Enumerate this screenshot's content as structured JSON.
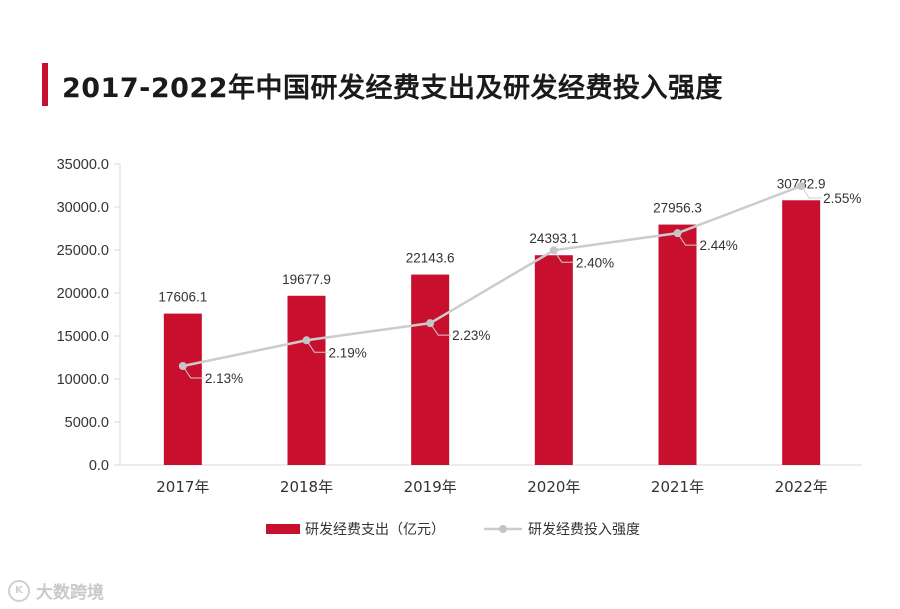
{
  "title": "2017-2022年中国研发经费支出及研发经费投入强度",
  "watermark": "大数跨境",
  "colors": {
    "bar": "#c8102e",
    "line": "#cccccc",
    "accent": "#c8102e",
    "axis": "#d9d9d9"
  },
  "chart_data": {
    "type": "bar",
    "categories": [
      "2017年",
      "2018年",
      "2019年",
      "2020年",
      "2021年",
      "2022年"
    ],
    "series": [
      {
        "name": "研发经费支出（亿元）",
        "type": "bar",
        "values": [
          17606.1,
          19677.9,
          22143.6,
          24393.1,
          27956.3,
          30782.9
        ],
        "labels": [
          "17606.1",
          "19677.9",
          "22143.6",
          "24393.1",
          "27956.3",
          "30782.9"
        ]
      },
      {
        "name": "研发经费投入强度",
        "type": "line",
        "values": [
          2.13,
          2.19,
          2.23,
          2.4,
          2.44,
          2.55
        ],
        "labels": [
          "2.13%",
          "2.19%",
          "2.23%",
          "2.40%",
          "2.44%",
          "2.55%"
        ]
      }
    ],
    "yticks": [
      "0.0",
      "5000.0",
      "10000.0",
      "15000.0",
      "20000.0",
      "25000.0",
      "30000.0",
      "35000.0"
    ],
    "ylim": [
      0,
      35000
    ],
    "legend_position": "bottom-center"
  }
}
